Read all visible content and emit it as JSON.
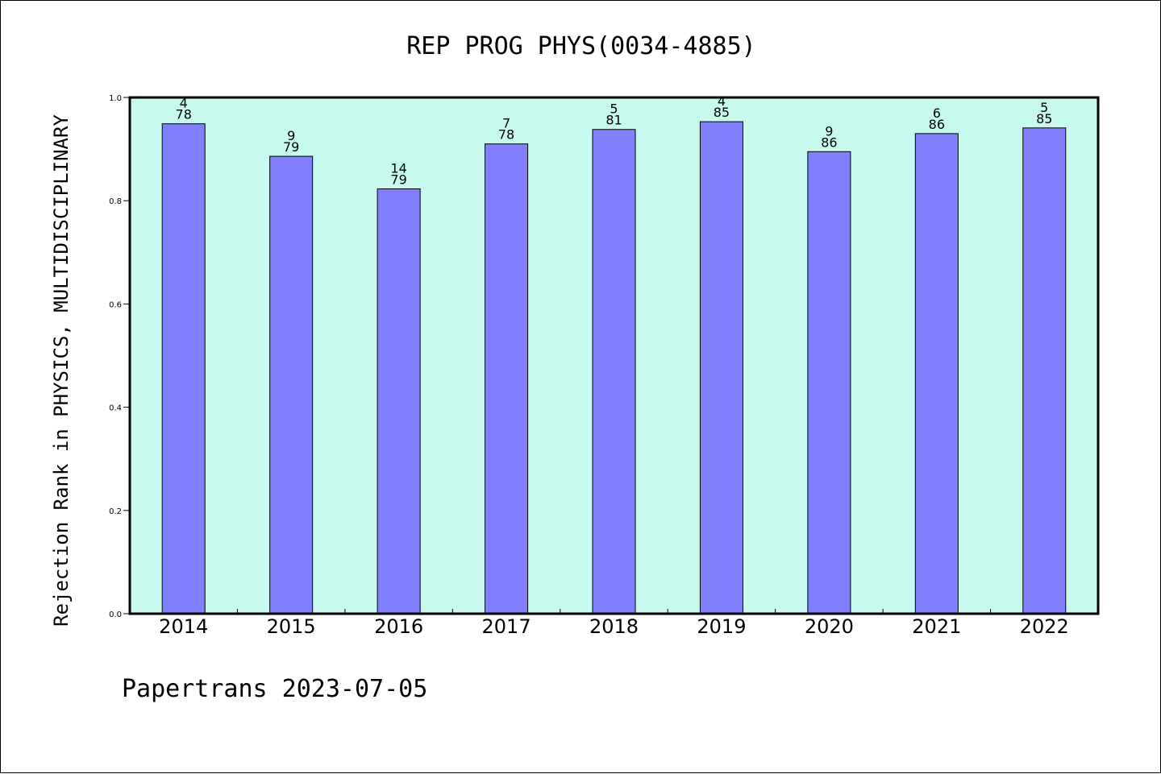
{
  "chart_data": {
    "type": "bar",
    "title": "REP PROG PHYS(0034-4885)",
    "xlabel": "",
    "ylabel": "Rejection Rank in PHYSICS, MULTIDISCIPLINARY",
    "ylim": [
      0,
      1.0
    ],
    "yticks": [
      "0.0",
      "0.2",
      "0.4",
      "0.6",
      "0.8",
      "1.0"
    ],
    "categories": [
      "2014",
      "2015",
      "2016",
      "2017",
      "2018",
      "2019",
      "2020",
      "2021",
      "2022"
    ],
    "values": [
      0.949,
      0.886,
      0.823,
      0.91,
      0.938,
      0.953,
      0.895,
      0.93,
      0.941
    ],
    "rank": [
      "4",
      "9",
      "14",
      "7",
      "5",
      "4",
      "9",
      "6",
      "5"
    ],
    "total": [
      "78",
      "79",
      "79",
      "78",
      "81",
      "85",
      "86",
      "86",
      "85"
    ],
    "grid": false,
    "colors": {
      "plot_background": "#c8f9ee",
      "bar_fill": "#8080ff",
      "bar_stroke": "#000000"
    }
  },
  "footer": {
    "text": "Papertrans 2023-07-05"
  }
}
